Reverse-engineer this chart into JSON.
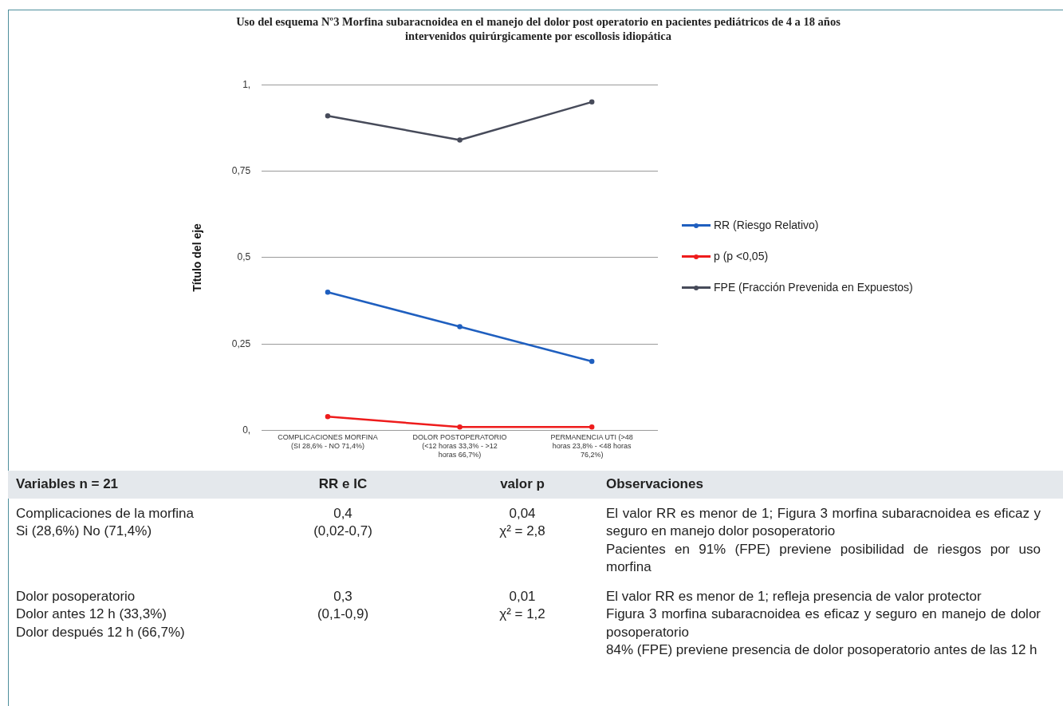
{
  "chart_data": [
    {
      "type": "line",
      "title": "Uso del esquema Nº3 Morfina subaracnoidea en el manejo del dolor post operatorio en pacientes pediátricos de 4 a 18 años intervenidos quirúrgicamente  por escollosis idiopática",
      "ylabel": "Título del eje",
      "categories": [
        "COMPLICACIONES MORFINA (SI 28,6% - NO 71,4%)",
        "DOLOR POSTOPERATORIO (<12 horas 33,3% - >12 horas 66,7%)",
        "PERMANENCIA UTI (>48 horas 23,8% - <48 horas 76,2%)"
      ],
      "series": [
        {
          "name": "RR (Riesgo Relativo)",
          "color": "#1f5fbf",
          "values": [
            0.4,
            0.3,
            0.2
          ]
        },
        {
          "name": "p (p <0,05)",
          "color": "#ee1c1c",
          "values": [
            0.04,
            0.01,
            0.01
          ]
        },
        {
          "name": "FPE (Fracción Prevenida en Expuestos)",
          "color": "#474b5a",
          "values": [
            0.91,
            0.84,
            0.95
          ]
        }
      ],
      "ylim": [
        0,
        1
      ],
      "yticks": [
        {
          "value": 0,
          "label": "0,"
        },
        {
          "value": 0.25,
          "label": "0,25"
        },
        {
          "value": 0.5,
          "label": "0,5"
        },
        {
          "value": 0.75,
          "label": "0,75"
        },
        {
          "value": 1,
          "label": "1,"
        }
      ],
      "grid": "y",
      "legend": "right",
      "marker": "circle",
      "line_style": "solid"
    },
    {
      "type": "other",
      "annotations": [
        "Variables n = 21",
        "RR e IC",
        "valor p",
        "Observaciones",
        "Complicaciones de la morfina\nSi (28,6%) No (71,4%)",
        "0,4\n(0,02-0,7)",
        "0,04\nχ² = 2,8",
        "El valor RR es menor de 1; Figura 3 morfina subaracnoidea es eficaz y seguro en manejo dolor posoperatorio\nPacientes en 91% (FPE) previene posibilidad de riesgos por uso morfina",
        "Dolor posoperatorio\nDolor antes 12 h (33,3%)\nDolor después 12 h (66,7%)",
        "0,3\n(0,1-0,9)",
        "0,01\nχ² = 1,2",
        "El valor RR es menor de 1; refleja presencia de valor protector\nFigura 3 morfina subaracnoidea es eficaz y seguro en manejo de dolor posoperatorio\n84% (FPE) previene presencia de dolor posoperatorio antes de las 12 h"
      ]
    }
  ]
}
